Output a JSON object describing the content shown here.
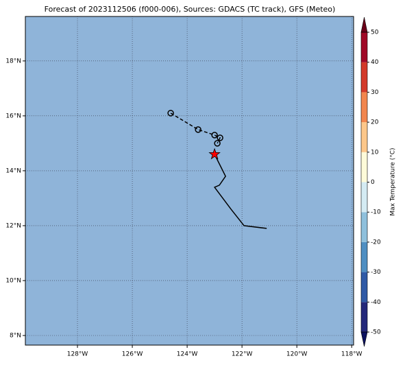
{
  "chart_data": {
    "type": "map",
    "title": "Forecast of 2023112506 (f000-006), Sources: GDACS (TC track), GFS (Meteo)",
    "background_color": "#8fb4d9",
    "xlim": [
      -129.9,
      -117.93
    ],
    "ylim": [
      7.65,
      19.62
    ],
    "xticks": [
      {
        "value": -128,
        "label": "128°W"
      },
      {
        "value": -126,
        "label": "126°W"
      },
      {
        "value": -124,
        "label": "124°W"
      },
      {
        "value": -122,
        "label": "122°W"
      },
      {
        "value": -120,
        "label": "120°W"
      },
      {
        "value": -118,
        "label": "118°W"
      }
    ],
    "yticks": [
      {
        "value": 8,
        "label": "8°N"
      },
      {
        "value": 10,
        "label": "10°N"
      },
      {
        "value": 12,
        "label": "12°N"
      },
      {
        "value": 14,
        "label": "14°N"
      },
      {
        "value": 16,
        "label": "16°N"
      },
      {
        "value": 18,
        "label": "18°N"
      }
    ],
    "grid": true,
    "history_track": {
      "lon": [
        -123.0,
        -122.6,
        -122.825,
        -123.0,
        -122.4,
        -121.925,
        -121.1
      ],
      "lat": [
        14.6,
        13.8,
        13.475,
        13.4,
        12.6,
        12.0,
        11.9
      ]
    },
    "forecast_track": {
      "lon": [
        -124.6,
        -123.6,
        -123.0,
        -122.8,
        -122.9
      ],
      "lat": [
        16.1,
        15.5,
        15.3,
        15.2,
        15.0
      ]
    },
    "current_position": {
      "lon": -123.0,
      "lat": 14.6,
      "color": "#ff0000"
    },
    "colorbar": {
      "label": "Max Temperature (°C)",
      "bounds": [
        -50,
        -40,
        -30,
        -20,
        -10,
        0,
        10,
        20,
        30,
        40,
        50
      ],
      "colors": [
        "#24287a",
        "#2f5aa6",
        "#4f8fc2",
        "#8fc0dc",
        "#d4ebf3",
        "#fefbd9",
        "#fdc78a",
        "#f2864e",
        "#d33a2a",
        "#a00826"
      ],
      "extend_colors": [
        "#0c1260",
        "#6b0019"
      ],
      "ticks": [
        50,
        40,
        30,
        20,
        10,
        0,
        -10,
        -20,
        -30,
        -40,
        -50
      ]
    }
  }
}
